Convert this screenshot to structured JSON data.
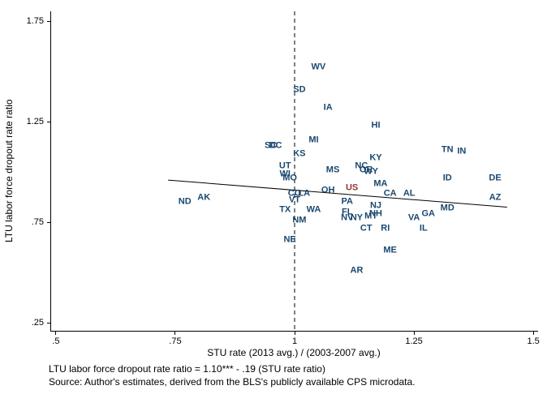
{
  "footnotes": [
    "LTU labor force dropout rate ratio = 1.10*** - .19 (STU rate ratio)",
    "Source: Author's estimates, derived from the BLS's publicly available CPS microdata."
  ],
  "chart_data": {
    "type": "scatter",
    "title": "",
    "xlabel": "STU rate (2013 avg.) / (2003-2007 avg.)",
    "ylabel": "LTU labor force dropout rate ratio",
    "xlim": [
      0.49,
      1.51
    ],
    "ylim": [
      0.21,
      1.8
    ],
    "grid": false,
    "legend": "none",
    "xticks": {
      "values": [
        0.5,
        0.75,
        1.0,
        1.25,
        1.5
      ],
      "labels": [
        ".5",
        ".75",
        "1",
        "1.25",
        "1.5"
      ]
    },
    "yticks": {
      "values": [
        0.25,
        0.75,
        1.25,
        1.75
      ],
      "labels": [
        ".25",
        ".75",
        "1.25",
        "1.75"
      ]
    },
    "reference_line": {
      "x": 1.0,
      "style": "dashed",
      "color": "#000000"
    },
    "fit_line": {
      "intercept": 1.1,
      "slope": -0.19,
      "x_start": 0.735,
      "x_end": 1.445,
      "color": "#000000"
    },
    "marker_color": "#1a476f",
    "highlight_color": "#903538",
    "points": [
      {
        "label": "WV",
        "x": 1.05,
        "y": 1.52
      },
      {
        "label": "SD",
        "x": 1.01,
        "y": 1.41
      },
      {
        "label": "IA",
        "x": 1.07,
        "y": 1.32
      },
      {
        "label": "HI",
        "x": 1.17,
        "y": 1.23
      },
      {
        "label": "MI",
        "x": 1.04,
        "y": 1.16
      },
      {
        "label": "SC",
        "x": 0.95,
        "y": 1.13
      },
      {
        "label": "DC",
        "x": 0.96,
        "y": 1.13
      },
      {
        "label": "KS",
        "x": 1.01,
        "y": 1.09
      },
      {
        "label": "TN",
        "x": 1.32,
        "y": 1.11
      },
      {
        "label": "IN",
        "x": 1.35,
        "y": 1.1
      },
      {
        "label": "UT",
        "x": 0.98,
        "y": 1.03
      },
      {
        "label": "KY",
        "x": 1.17,
        "y": 1.07
      },
      {
        "label": "NC",
        "x": 1.14,
        "y": 1.03
      },
      {
        "label": "MS",
        "x": 1.08,
        "y": 1.01
      },
      {
        "label": "OR",
        "x": 1.15,
        "y": 1.01
      },
      {
        "label": "WY",
        "x": 1.16,
        "y": 1.0
      },
      {
        "label": "WI",
        "x": 0.98,
        "y": 0.99
      },
      {
        "label": "MO",
        "x": 0.99,
        "y": 0.97
      },
      {
        "label": "ID",
        "x": 1.32,
        "y": 0.97
      },
      {
        "label": "DE",
        "x": 1.42,
        "y": 0.97
      },
      {
        "label": "MA",
        "x": 1.18,
        "y": 0.94
      },
      {
        "label": "US",
        "x": 1.12,
        "y": 0.92,
        "highlight": true
      },
      {
        "label": "OH",
        "x": 1.07,
        "y": 0.91
      },
      {
        "label": "CO",
        "x": 1.0,
        "y": 0.89
      },
      {
        "label": "LA",
        "x": 1.02,
        "y": 0.89
      },
      {
        "label": "CA",
        "x": 1.2,
        "y": 0.89
      },
      {
        "label": "AL",
        "x": 1.24,
        "y": 0.89
      },
      {
        "label": "AZ",
        "x": 1.42,
        "y": 0.87
      },
      {
        "label": "AK",
        "x": 0.81,
        "y": 0.87
      },
      {
        "label": "ND",
        "x": 0.77,
        "y": 0.85
      },
      {
        "label": "VT",
        "x": 1.0,
        "y": 0.86
      },
      {
        "label": "PA",
        "x": 1.11,
        "y": 0.85
      },
      {
        "label": "MD",
        "x": 1.32,
        "y": 0.82
      },
      {
        "label": "TX",
        "x": 0.98,
        "y": 0.81
      },
      {
        "label": "WA",
        "x": 1.04,
        "y": 0.81
      },
      {
        "label": "NJ",
        "x": 1.17,
        "y": 0.83
      },
      {
        "label": "FL",
        "x": 1.11,
        "y": 0.8
      },
      {
        "label": "NH",
        "x": 1.17,
        "y": 0.79
      },
      {
        "label": "GA",
        "x": 1.28,
        "y": 0.79
      },
      {
        "label": "MT",
        "x": 1.16,
        "y": 0.78
      },
      {
        "label": "NV",
        "x": 1.11,
        "y": 0.77
      },
      {
        "label": "NY",
        "x": 1.13,
        "y": 0.77
      },
      {
        "label": "VA",
        "x": 1.25,
        "y": 0.77
      },
      {
        "label": "NM",
        "x": 1.01,
        "y": 0.76
      },
      {
        "label": "CT",
        "x": 1.15,
        "y": 0.72
      },
      {
        "label": "RI",
        "x": 1.19,
        "y": 0.72
      },
      {
        "label": "IL",
        "x": 1.27,
        "y": 0.72
      },
      {
        "label": "NE",
        "x": 0.99,
        "y": 0.66
      },
      {
        "label": "ME",
        "x": 1.2,
        "y": 0.61
      },
      {
        "label": "AR",
        "x": 1.13,
        "y": 0.51
      }
    ]
  }
}
